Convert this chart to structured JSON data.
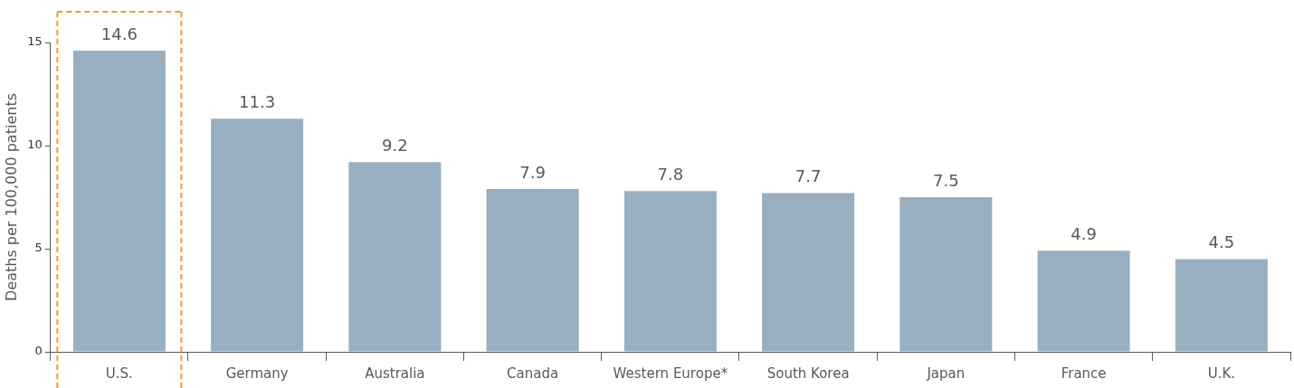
{
  "chart_data": {
    "type": "bar",
    "ylabel": "Deaths per 100,000 patients",
    "categories": [
      "U.S.",
      "Germany",
      "Australia",
      "Canada",
      "Western Europe*",
      "South Korea",
      "Japan",
      "France",
      "U.K."
    ],
    "values": [
      14.6,
      11.3,
      9.2,
      7.9,
      7.8,
      7.7,
      7.5,
      4.9,
      4.5
    ],
    "color": "#97afc0",
    "ylim": [
      0,
      15
    ],
    "yticks": [
      0,
      5,
      10,
      15
    ],
    "grid": false,
    "legend": false,
    "data_labels": true
  }
}
